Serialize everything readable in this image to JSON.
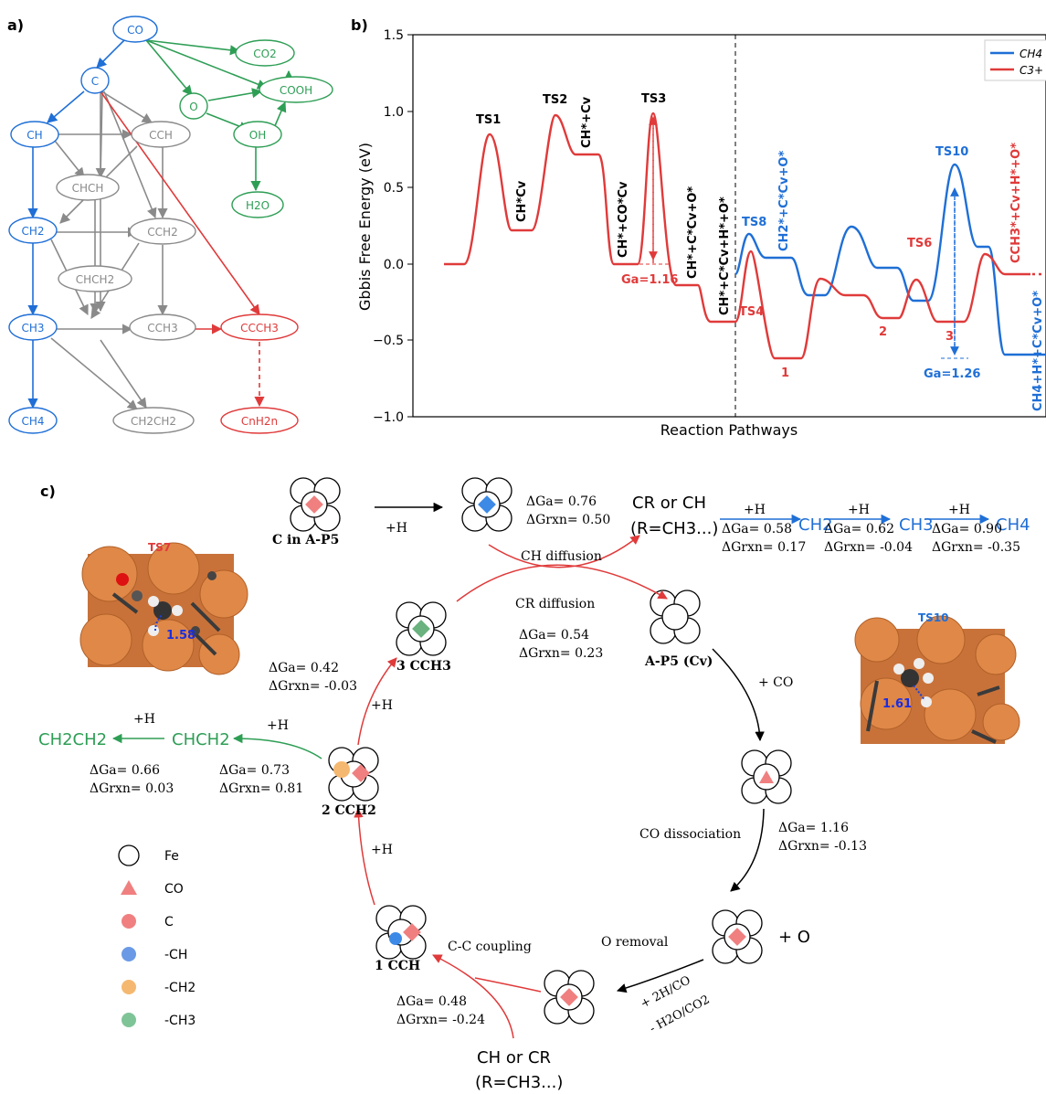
{
  "panel_labels": {
    "a": "a)",
    "b": "b)",
    "c": "c)"
  },
  "network": {
    "nodes": {
      "co": "CO",
      "c": "C",
      "o": "O",
      "co2": "CO2",
      "cooh": "COOH",
      "oh": "OH",
      "h2o": "H2O",
      "ch": "CH",
      "cch": "CCH",
      "chch": "CHCH",
      "ch2": "CH2",
      "cch2": "CCH2",
      "chch2": "CHCH2",
      "ch3": "CH3",
      "cch3_grey": "CCH3",
      "ccch3": "CCCH3",
      "ch4": "CH4",
      "ch2ch2": "CH2CH2",
      "cnh2n": "CnH2n"
    },
    "colors": {
      "blue": "#1f6fd6",
      "green": "#2e9e55",
      "grey": "#8a8a8a",
      "red": "#e03a3a"
    }
  },
  "chart": {
    "ylabel": "Gbbis Free Energy (eV)",
    "xlabel": "Reaction Pathways",
    "yticks": [
      "1.5",
      "1.0",
      "0.5",
      "0.0",
      "−0.5",
      "−1.0"
    ],
    "legend": [
      "CH4",
      "C3+"
    ],
    "red_labels": {
      "ts1": "TS1",
      "ts2": "TS2",
      "ts3": "TS3",
      "chcv": "CH*Cv",
      "chpluscv": "CH*+Cv",
      "chcocv": "CH*+CO*Cv",
      "chcvo": "CH*+C*Cv+O*",
      "chcvho": "CH*+C*Cv+H*+O*",
      "ga": "Ga=1.16",
      "ts4": "TS4",
      "ts6": "TS6",
      "n1": "1",
      "n2": "2",
      "n3": "3",
      "cch3": "CCH3*+Cv+H*+O*",
      "dots": "..."
    },
    "blue_labels": {
      "ts8": "TS8",
      "ts10": "TS10",
      "ch2": "CH2*+C*Cv+O*",
      "ga": "Ga=1.26",
      "ch4": "CH4+H*+C*Cv+O*"
    }
  },
  "cycle": {
    "c_in_ap5": "C in A-P5",
    "plus_h": "+H",
    "first_dg": {
      "a": "ΔGa= 0.76",
      "rxn": "ΔGrxn= 0.50"
    },
    "cr_or_ch": "CR or CH",
    "r_ch3": "(R=CH3...)",
    "hydro": [
      {
        "label": "CH2",
        "a": "ΔGa= 0.58",
        "rxn": "ΔGrxn= 0.17"
      },
      {
        "label": "CH3",
        "a": "ΔGa= 0.62",
        "rxn": "ΔGrxn= -0.04"
      },
      {
        "label": "CH4",
        "a": "ΔGa= 0.90",
        "rxn": "ΔGrxn= -0.35"
      }
    ],
    "ch_diffusion": "CH diffusion",
    "cr_diffusion": "CR diffusion",
    "cr_dg": {
      "a": "ΔGa= 0.54",
      "rxn": "ΔGrxn= 0.23"
    },
    "ap5cv": "A-P5 (Cv)",
    "plus_co": "+ CO",
    "co_diss": "CO dissociation",
    "co_dg": {
      "a": "ΔGa= 1.16",
      "rxn": "ΔGrxn= -0.13"
    },
    "plus_o": "+ O",
    "o_removal": "O removal",
    "plus_2h": "+ 2H/CO",
    "minus_h2o": "- H2O/CO2",
    "cc_coupling": "C-C coupling",
    "cc_dg": {
      "a": "ΔGa= 0.48",
      "rxn": "ΔGrxn= -0.24"
    },
    "ch_or_cr": "CH or CR",
    "r_ch3_bottom": "(R=CH3...)",
    "i1": "1  CCH",
    "i2": "2  CCH2",
    "i3": "3  CCH3",
    "i3_dg": {
      "a": "ΔGa= 0.42",
      "rxn": "ΔGrxn= -0.03"
    },
    "i2_dg": {
      "a": "ΔGa= 0.73",
      "rxn": "ΔGrxn= 0.81"
    },
    "chch2_dg": {
      "a": "ΔGa= 0.66",
      "rxn": "ΔGrxn= 0.03"
    },
    "ch2ch2": "CH2CH2",
    "chch2": "CHCH2",
    "ts7": "TS7",
    "ts7_dist": "1.58",
    "ts10": "TS10",
    "ts10_dist": "1.61"
  },
  "legend": [
    "Fe",
    "CO",
    "C",
    "-CH",
    "-CH2",
    "-CH3"
  ]
}
